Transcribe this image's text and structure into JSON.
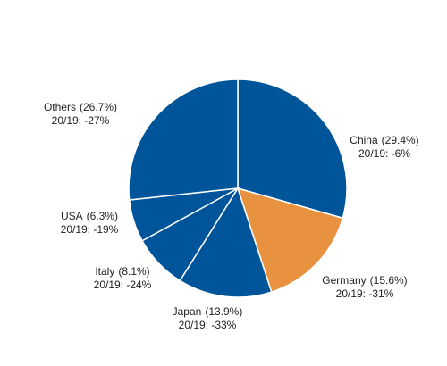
{
  "chart_data": {
    "type": "pie",
    "categories": [
      "China",
      "Germany",
      "Japan",
      "Italy",
      "USA",
      "Others"
    ],
    "values": [
      29.4,
      15.6,
      13.9,
      8.1,
      6.3,
      26.7
    ],
    "value_labels": [
      "(29.4%)",
      "(15.6%)",
      "(13.9%)",
      "(8.1%)",
      "(6.3%)",
      "(26.7%)"
    ],
    "notes": [
      "20/19: -6%",
      "20/19: -31%",
      "20/19: -33%",
      "20/19: -24%",
      "20/19: -19%",
      "20/19: -27%"
    ],
    "colors": [
      "#00549a",
      "#e8923f",
      "#00549a",
      "#00549a",
      "#00549a",
      "#00549a"
    ],
    "total": 100
  }
}
